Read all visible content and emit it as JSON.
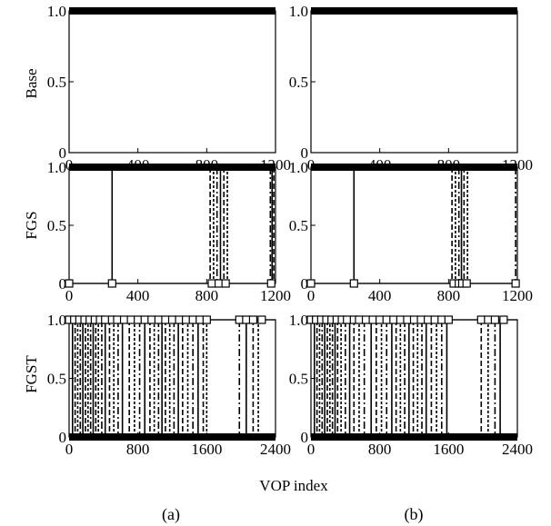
{
  "chart_data": {
    "type": "line",
    "xlabel": "VOP index",
    "captions": [
      "(a)",
      "(b)"
    ],
    "rows": [
      {
        "ylabel": "Base",
        "xlim": [
          0,
          1200
        ],
        "xticks": [
          0,
          400,
          800,
          1200
        ],
        "yticks": [
          0,
          0.5,
          1.0
        ],
        "ytick_labels": [
          "0",
          "0.5",
          "1.0"
        ],
        "panels": [
          {
            "caption": "(a)",
            "drops": [],
            "markers": [],
            "marker_level": 0,
            "line_level": 1
          },
          {
            "caption": "(b)",
            "drops": [],
            "markers": [],
            "marker_level": 0,
            "line_level": 1
          }
        ]
      },
      {
        "ylabel": "FGS",
        "xlim": [
          0,
          1200
        ],
        "xticks": [
          0,
          400,
          800,
          1200
        ],
        "yticks": [
          0,
          0.5,
          1.0
        ],
        "ytick_labels": [
          "0",
          "0.5",
          "1.0"
        ],
        "panels": [
          {
            "caption": "(a)",
            "drops": [
              250,
              820,
              840,
              860,
              880,
              900,
              920,
              1170,
              1180,
              1190
            ],
            "markers": [
              0,
              250,
              830,
              870,
              910,
              1175
            ],
            "marker_level": 0,
            "line_level": 1
          },
          {
            "caption": "(b)",
            "drops": [
              250,
              820,
              840,
              860,
              875,
              890,
              910,
              1190
            ],
            "markers": [
              0,
              250,
              830,
              860,
              880,
              905,
              1190
            ],
            "marker_level": 0,
            "line_level": 1
          }
        ]
      },
      {
        "ylabel": "FGST",
        "xlim": [
          0,
          2400
        ],
        "xticks": [
          0,
          800,
          1600,
          2400
        ],
        "yticks": [
          0,
          0.5,
          1.0
        ],
        "ytick_labels": [
          "0",
          "0.5",
          "1.0"
        ],
        "panels": [
          {
            "caption": "(a)",
            "drops": [
              40,
              70,
              100,
              130,
              160,
              190,
              220,
              250,
              280,
              310,
              340,
              380,
              420,
              470,
              520,
              570,
              620,
              700,
              760,
              820,
              880,
              940,
              990,
              1040,
              1080,
              1120,
              1170,
              1220,
              1270,
              1320,
              1380,
              1440,
              1500,
              1560,
              1600,
              1980,
              2060,
              2140,
              2200
            ],
            "markers": [
              0,
              60,
              120,
              180,
              240,
              300,
              360,
              420,
              500,
              560,
              640,
              720,
              800,
              880,
              960,
              1040,
              1120,
              1200,
              1280,
              1360,
              1440,
              1520,
              1600,
              1980,
              2060,
              2140,
              2240
            ],
            "marker_level": 1,
            "line_level": 0
          },
          {
            "caption": "(b)",
            "drops": [
              40,
              70,
              100,
              130,
              160,
              190,
              220,
              250,
              280,
              310,
              350,
              400,
              450,
              500,
              560,
              620,
              700,
              760,
              820,
              880,
              940,
              990,
              1040,
              1090,
              1140,
              1190,
              1240,
              1290,
              1340,
              1400,
              1460,
              1520,
              1580,
              1980,
              2060,
              2140,
              2200
            ],
            "markers": [
              0,
              60,
              120,
              180,
              240,
              300,
              360,
              420,
              500,
              560,
              640,
              720,
              800,
              880,
              960,
              1040,
              1120,
              1200,
              1280,
              1360,
              1440,
              1520,
              1600,
              1980,
              2060,
              2140,
              2240
            ],
            "marker_level": 1,
            "line_level": 0
          }
        ]
      }
    ]
  }
}
